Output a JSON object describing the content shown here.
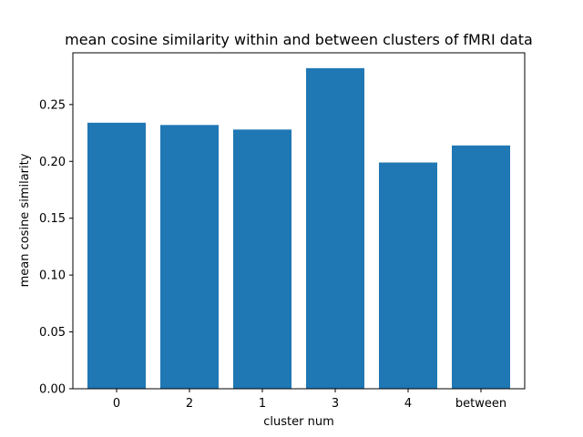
{
  "chart_data": {
    "type": "bar",
    "title": "mean cosine similarity within and between clusters of fMRI data",
    "xlabel": "cluster num",
    "ylabel": "mean cosine similarity",
    "categories": [
      "0",
      "2",
      "1",
      "3",
      "4",
      "between"
    ],
    "values": [
      0.234,
      0.232,
      0.228,
      0.282,
      0.199,
      0.214
    ],
    "ylim": [
      0,
      0.2955
    ],
    "yticks": [
      "0.00",
      "0.05",
      "0.10",
      "0.15",
      "0.20",
      "0.25"
    ],
    "bar_color": "#1f77b4",
    "grid": false,
    "legend": "none"
  }
}
